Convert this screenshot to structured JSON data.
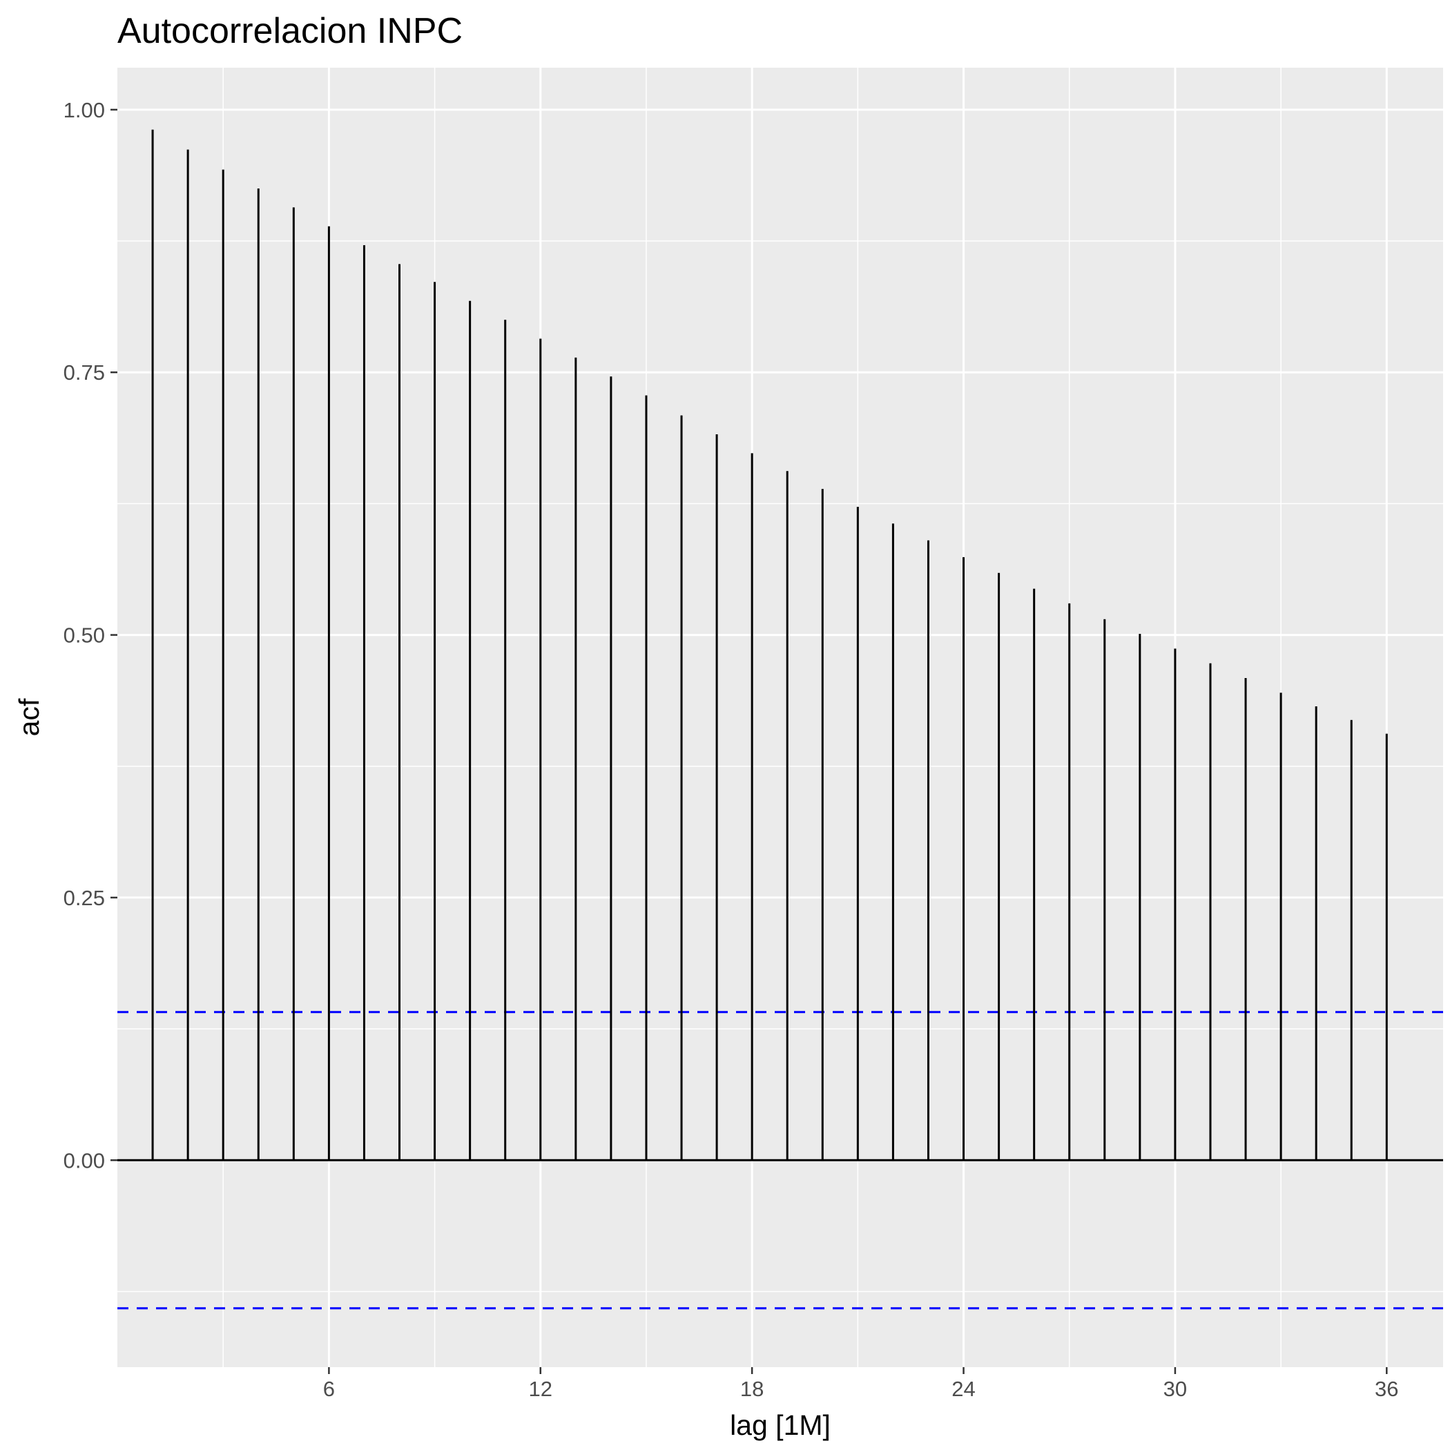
{
  "chart_data": {
    "type": "bar",
    "title": "Autocorrelacion INPC",
    "xlabel": "lag [1M]",
    "ylabel": "acf",
    "x": [
      1,
      2,
      3,
      4,
      5,
      6,
      7,
      8,
      9,
      10,
      11,
      12,
      13,
      14,
      15,
      16,
      17,
      18,
      19,
      20,
      21,
      22,
      23,
      24,
      25,
      26,
      27,
      28,
      29,
      30,
      31,
      32,
      33,
      34,
      35,
      36
    ],
    "values": [
      0.981,
      0.962,
      0.943,
      0.925,
      0.907,
      0.889,
      0.871,
      0.853,
      0.836,
      0.818,
      0.8,
      0.782,
      0.764,
      0.746,
      0.728,
      0.709,
      0.691,
      0.673,
      0.656,
      0.639,
      0.622,
      0.606,
      0.59,
      0.574,
      0.559,
      0.544,
      0.53,
      0.515,
      0.501,
      0.487,
      0.473,
      0.459,
      0.445,
      0.432,
      0.419,
      0.406
    ],
    "xlim": [
      0,
      37.6
    ],
    "ylim": [
      -0.197,
      1.04
    ],
    "x_ticks": [
      6,
      12,
      18,
      24,
      30,
      36
    ],
    "x_tick_labels": [
      "6",
      "12",
      "18",
      "24",
      "30",
      "36"
    ],
    "y_ticks": [
      0,
      0.25,
      0.5,
      0.75,
      1.0
    ],
    "y_tick_labels": [
      "0.00",
      "0.25",
      "0.50",
      "0.75",
      "1.00"
    ],
    "confidence_bounds": [
      0.141,
      -0.141
    ],
    "grid": true,
    "colors": {
      "panel": "#ebebeb",
      "grid": "#ffffff",
      "bars": "#000000",
      "zero_line": "#000000",
      "bounds": "#0000ff",
      "tick_text": "#4d4d4d",
      "tick_mark": "#333333"
    }
  }
}
